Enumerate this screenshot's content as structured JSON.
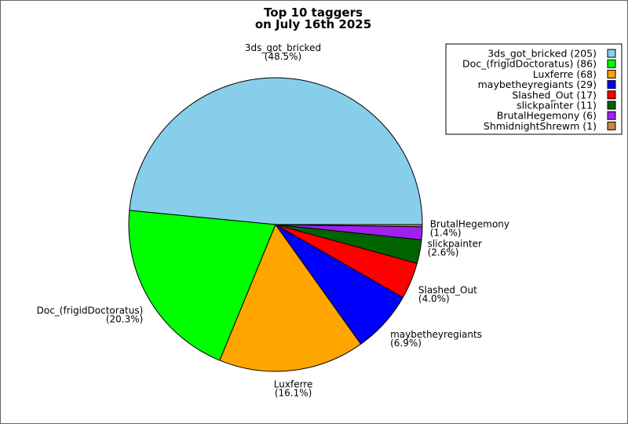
{
  "chart_data": {
    "type": "pie",
    "title_lines": [
      "Top 10 taggers",
      "on July 16th 2025"
    ],
    "legend_position": "top-right",
    "slices": [
      {
        "name": "3ds_got_bricked",
        "value": 205,
        "percent": "(48.5%)",
        "legend": "3ds_got_bricked (205)",
        "color": "#87CEEB"
      },
      {
        "name": "Doc_(frigidDoctoratus)",
        "value": 86,
        "percent": "(20.3%)",
        "legend": "Doc_(frigidDoctoratus) (86)",
        "color": "#00FF00"
      },
      {
        "name": "Luxferre",
        "value": 68,
        "percent": "(16.1%)",
        "legend": "Luxferre (68)",
        "color": "#FFA500"
      },
      {
        "name": "maybetheyregiants",
        "value": 29,
        "percent": "(6.9%)",
        "legend": "maybetheyregiants (29)",
        "color": "#0000FF"
      },
      {
        "name": "Slashed_Out",
        "value": 17,
        "percent": "(4.0%)",
        "legend": "Slashed_Out (17)",
        "color": "#FF0000"
      },
      {
        "name": "slickpainter",
        "value": 11,
        "percent": "(2.6%)",
        "legend": "slickpainter (11)",
        "color": "#006400"
      },
      {
        "name": "BrutalHegemony",
        "value": 6,
        "percent": "(1.4%)",
        "legend": "BrutalHegemony (6)",
        "color": "#A020F0"
      },
      {
        "name": "ShmidnightShrewm",
        "value": 1,
        "percent": "",
        "legend": "ShmidnightShrewm (1)",
        "color": "#CD853F"
      }
    ]
  }
}
